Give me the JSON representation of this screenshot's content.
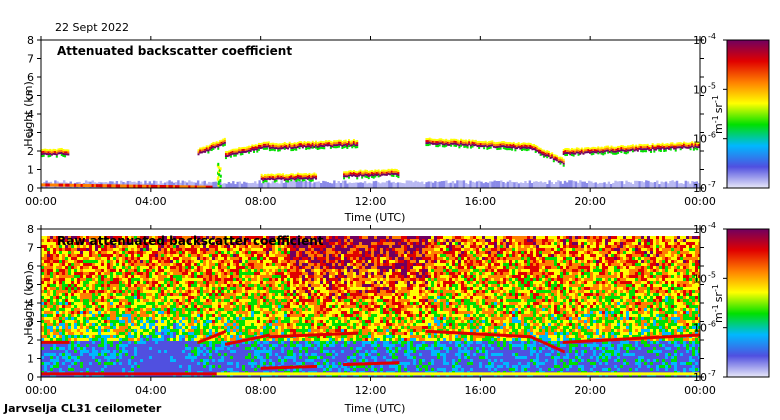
{
  "date": "22 Sept 2022",
  "footer": "Jarvselja CL31 ceilometer",
  "colorbar": {
    "ticks": [
      {
        "base": "10",
        "exp": "-4"
      },
      {
        "base": "10",
        "exp": "-5"
      },
      {
        "base": "10",
        "exp": "-6"
      },
      {
        "base": "10",
        "exp": "-7"
      }
    ],
    "label_parts": {
      "m": "m",
      "m_exp": "-1",
      "sr": "sr",
      "sr_exp": "-1"
    },
    "colors": [
      "#e8e8f8",
      "#5050e0",
      "#00b8ff",
      "#00e000",
      "#ffff00",
      "#ff8000",
      "#e00000",
      "#700060"
    ]
  },
  "chart_data": [
    {
      "type": "heatmap",
      "title": "Attenuated backscatter coefficient",
      "xlabel": "Time (UTC)",
      "ylabel": "Height (km)",
      "xticks": [
        "00:00",
        "04:00",
        "08:00",
        "12:00",
        "16:00",
        "20:00",
        "00:00"
      ],
      "yticks": [
        "0",
        "1",
        "2",
        "3",
        "4",
        "5",
        "6",
        "7",
        "8"
      ],
      "xlim_hours": [
        0,
        24
      ],
      "ylim_km": [
        0,
        8
      ],
      "color_scale": "log",
      "color_range": [
        1e-07,
        0.0001
      ],
      "cloud_layers": [
        {
          "t0": 5.7,
          "t1": 6.7,
          "h0": 1.9,
          "h1": 2.5
        },
        {
          "t0": 6.7,
          "t1": 8.3,
          "h0": 1.8,
          "h1": 2.3
        },
        {
          "t0": 8.3,
          "t1": 11.5,
          "h0": 2.2,
          "h1": 2.4
        },
        {
          "t0": 14.0,
          "t1": 17.8,
          "h0": 2.5,
          "h1": 2.2
        },
        {
          "t0": 17.8,
          "t1": 19.0,
          "h0": 2.2,
          "h1": 1.4
        },
        {
          "t0": 19.0,
          "t1": 24.0,
          "h0": 1.9,
          "h1": 2.3
        },
        {
          "t0": 8.0,
          "t1": 10.0,
          "h0": 0.5,
          "h1": 0.6
        },
        {
          "t0": 11.0,
          "t1": 13.0,
          "h0": 0.7,
          "h1": 0.8
        },
        {
          "t0": 0.0,
          "t1": 1.0,
          "h0": 1.9,
          "h1": 1.9
        }
      ],
      "boundary_layer_top_km": 0.35
    },
    {
      "type": "heatmap",
      "title": "Raw attenuated backscatter coefficient",
      "xlabel": "Time (UTC)",
      "ylabel": "Height (km)",
      "xticks": [
        "00:00",
        "04:00",
        "08:00",
        "12:00",
        "16:00",
        "20:00",
        "00:00"
      ],
      "yticks": [
        "0",
        "1",
        "2",
        "3",
        "4",
        "5",
        "6",
        "7",
        "8"
      ],
      "xlim_hours": [
        0,
        24
      ],
      "ylim_km": [
        0,
        8
      ],
      "color_scale": "log",
      "color_range": [
        1e-07,
        0.0001
      ],
      "noise_data_top_km": 7.6,
      "boundary_layer_top_km": 0.35
    }
  ]
}
